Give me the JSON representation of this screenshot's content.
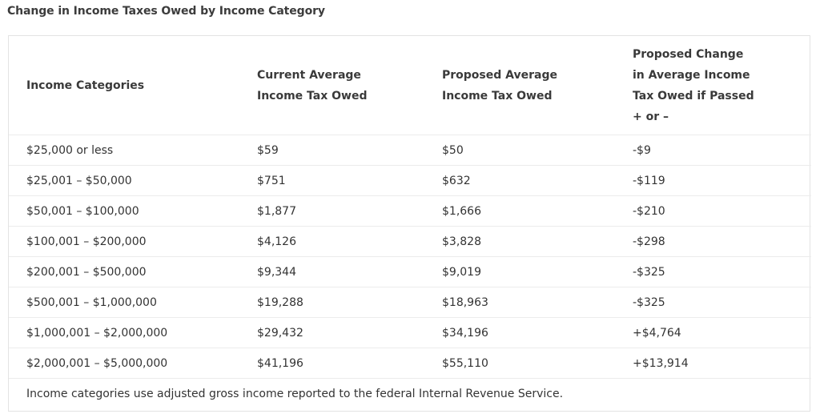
{
  "title": "Change in Income Taxes Owed by Income Category",
  "table": {
    "headers": [
      "Income Categories",
      "Current Average Income Tax Owed",
      "Proposed Average Income Tax Owed",
      "Proposed Change in Average Income Tax Owed if Passed + or –"
    ],
    "header_lines": {
      "h1": [
        "Income Categories"
      ],
      "h2": [
        "Current Average",
        "Income Tax Owed"
      ],
      "h3": [
        "Proposed Average",
        "Income Tax Owed"
      ],
      "h4": [
        "Proposed Change",
        "in Average Income",
        "Tax Owed if Passed",
        "+ or –"
      ]
    },
    "rows": [
      [
        "$25,000 or less",
        "$59",
        "$50",
        "-$9"
      ],
      [
        "$25,001 – $50,000",
        "$751",
        "$632",
        "-$119"
      ],
      [
        "$50,001 – $100,000",
        "$1,877",
        "$1,666",
        "-$210"
      ],
      [
        "$100,001 – $200,000",
        "$4,126",
        "$3,828",
        "-$298"
      ],
      [
        "$200,001 – $500,000",
        "$9,344",
        "$9,019",
        "-$325"
      ],
      [
        "$500,001 – $1,000,000",
        "$19,288",
        "$18,963",
        "-$325"
      ],
      [
        "$1,000,001 – $2,000,000",
        "$29,432",
        "$34,196",
        "+$4,764"
      ],
      [
        "$2,000,001 – $5,000,000",
        "$41,196",
        "$55,110",
        "+$13,914"
      ]
    ],
    "note": "Income categories use adjusted gross income reported to the federal Internal Revenue Service."
  }
}
